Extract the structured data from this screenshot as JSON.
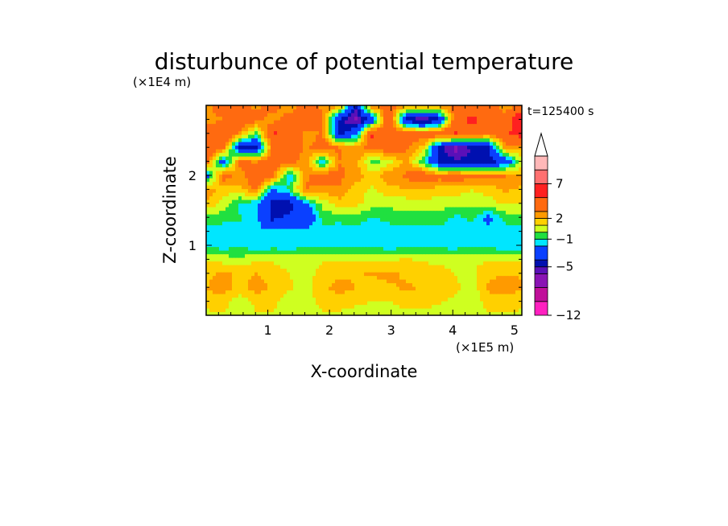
{
  "chart_data": {
    "type": "heatmap",
    "title": "disturbunce of potential temperature",
    "xlabel": "X-coordinate",
    "ylabel": "Z-coordinate",
    "x_unit": "(×1E5 m)",
    "y_unit": "(×1E4 m)",
    "time_label": "t=125400 s",
    "xlim": [
      0,
      5.12
    ],
    "ylim": [
      0,
      3.0
    ],
    "x_ticks": [
      1,
      2,
      3,
      4,
      5
    ],
    "y_ticks": [
      1,
      2
    ],
    "colorbar": {
      "tick_labels": [
        "7",
        "2",
        "−1",
        "−5",
        "−12"
      ],
      "tick_values": [
        7,
        2,
        -1,
        -5,
        -12
      ],
      "bins": [
        {
          "lo": -12,
          "hi": -10,
          "color": "#ff20c0"
        },
        {
          "lo": -10,
          "hi": -8,
          "color": "#c0109a"
        },
        {
          "lo": -8,
          "hi": -6,
          "color": "#8a14b4"
        },
        {
          "lo": -6,
          "hi": -5,
          "color": "#5a10b8"
        },
        {
          "lo": -5,
          "hi": -4,
          "color": "#0010b0"
        },
        {
          "lo": -4,
          "hi": -2,
          "color": "#0a40ff"
        },
        {
          "lo": -2,
          "hi": -1,
          "color": "#00e6ff"
        },
        {
          "lo": -1,
          "hi": 0,
          "color": "#20e040"
        },
        {
          "lo": 0,
          "hi": 1,
          "color": "#cfff20"
        },
        {
          "lo": 1,
          "hi": 2,
          "color": "#ffd000"
        },
        {
          "lo": 2,
          "hi": 3,
          "color": "#ff9a00"
        },
        {
          "lo": 3,
          "hi": 5,
          "color": "#ff6a10"
        },
        {
          "lo": 5,
          "hi": 7,
          "color": "#ff2020"
        },
        {
          "lo": 7,
          "hi": 9,
          "color": "#ff7070"
        },
        {
          "lo": 9,
          "hi": 11,
          "color": "#ffb8b8"
        }
      ]
    },
    "grid_z": [
      [
        0.6,
        0.8,
        0.6,
        0.9,
        0.9,
        0.4,
        0.5,
        0.8,
        0.7,
        0.5,
        0.4,
        0.6,
        0.8,
        0.7,
        0.5,
        0.6,
        0.5,
        0.9,
        0.8,
        0.6
      ],
      [
        1.6,
        1.4,
        0.5,
        1.2,
        1.3,
        0.3,
        0.4,
        1.5,
        1.6,
        1.2,
        1.0,
        0.9,
        1.3,
        1.4,
        1.1,
        0.8,
        0.2,
        1.5,
        1.7,
        1.5
      ],
      [
        2.0,
        2.5,
        1.6,
        2.5,
        1.9,
        1.2,
        0.6,
        1.8,
        2.4,
        2.0,
        1.6,
        1.8,
        2.2,
        1.9,
        1.6,
        1.2,
        0.4,
        2.2,
        2.4,
        2.1
      ],
      [
        1.7,
        2.2,
        1.8,
        2.0,
        1.5,
        1.0,
        0.5,
        1.4,
        1.8,
        1.9,
        2.1,
        2.3,
        1.8,
        1.5,
        1.5,
        1.0,
        0.8,
        1.8,
        2.0,
        1.9
      ],
      [
        0.8,
        0.6,
        0.3,
        0.8,
        0.9,
        0.6,
        0.8,
        0.9,
        1.0,
        0.8,
        0.7,
        0.9,
        1.1,
        0.9,
        0.7,
        0.6,
        0.9,
        0.8,
        0.7,
        0.8
      ],
      [
        -1.3,
        -1.5,
        -1.2,
        -1.6,
        -1.5,
        -1.5,
        -1.4,
        -1.3,
        -1.5,
        -1.4,
        -1.3,
        -1.6,
        -1.5,
        -1.4,
        -1.4,
        -1.5,
        -1.3,
        -1.4,
        -1.6,
        -1.5
      ],
      [
        -1.5,
        -1.6,
        -1.3,
        -1.7,
        -1.6,
        -1.5,
        -1.4,
        -1.4,
        -1.6,
        -1.5,
        -1.5,
        -1.6,
        -1.6,
        -1.5,
        -1.4,
        -1.6,
        -1.5,
        -1.5,
        -1.6,
        -1.6
      ],
      [
        -0.4,
        -0.6,
        -0.9,
        -1.5,
        -4.5,
        -3.5,
        -4.2,
        -0.5,
        -0.7,
        -0.3,
        -1.2,
        -0.6,
        -0.5,
        -0.6,
        -0.4,
        -1.3,
        -0.8,
        -2.5,
        -0.6,
        -0.5
      ],
      [
        1.8,
        0.6,
        -1.2,
        -1.8,
        -4.5,
        -4.8,
        -2.2,
        0.4,
        1.5,
        1.3,
        0.5,
        0.3,
        0.4,
        0.6,
        0.5,
        0.4,
        0.3,
        0.5,
        1.2,
        1.0
      ],
      [
        2.8,
        1.5,
        1.6,
        3.2,
        -2.3,
        -0.7,
        3.2,
        2.3,
        2.9,
        1.5,
        0.8,
        1.6,
        1.9,
        1.8,
        1.6,
        1.5,
        1.0,
        1.4,
        2.2,
        1.8
      ],
      [
        -3.0,
        3.8,
        2.5,
        4.3,
        3.5,
        -2.2,
        2.8,
        4.2,
        3.4,
        2.5,
        1.5,
        2.8,
        3.1,
        4.4,
        3.5,
        4.0,
        3.4,
        3.6,
        3.1,
        2.2
      ],
      [
        4.2,
        -3.3,
        3.2,
        2.9,
        4.0,
        3.6,
        2.5,
        -2.0,
        3.0,
        2.5,
        -0.5,
        0.5,
        2.5,
        -0.6,
        -4.5,
        -4.6,
        -4.8,
        -4.5,
        -3.5,
        0.5
      ],
      [
        4.5,
        3.8,
        -4.4,
        -4.6,
        3.2,
        4.4,
        2.6,
        4.0,
        3.2,
        2.4,
        3.5,
        4.1,
        3.2,
        1.8,
        -4.4,
        -6.5,
        -4.8,
        -4.5,
        2.6,
        2.3
      ],
      [
        3.5,
        5.2,
        2.5,
        -0.6,
        5.3,
        4.6,
        2.4,
        3.1,
        -4.5,
        -2.6,
        5.5,
        3.5,
        4.5,
        3.8,
        4.6,
        5.2,
        4.0,
        3.4,
        4.6,
        6.0
      ],
      [
        2.5,
        2.8,
        4.5,
        3.5,
        2.5,
        3.5,
        4.6,
        3.2,
        -4.5,
        -6.5,
        -3.5,
        5.2,
        -4.8,
        -6.6,
        -4.8,
        4.2,
        5.5,
        4.5,
        3.6,
        7.6
      ],
      [
        2.2,
        4.5,
        3.2,
        2.8,
        3.5,
        2.3,
        3.5,
        2.8,
        2.5,
        -4.5,
        3.0,
        3.8,
        2.5,
        3.2,
        2.5,
        3.4,
        2.8,
        3.6,
        2.5,
        2.8
      ]
    ]
  }
}
